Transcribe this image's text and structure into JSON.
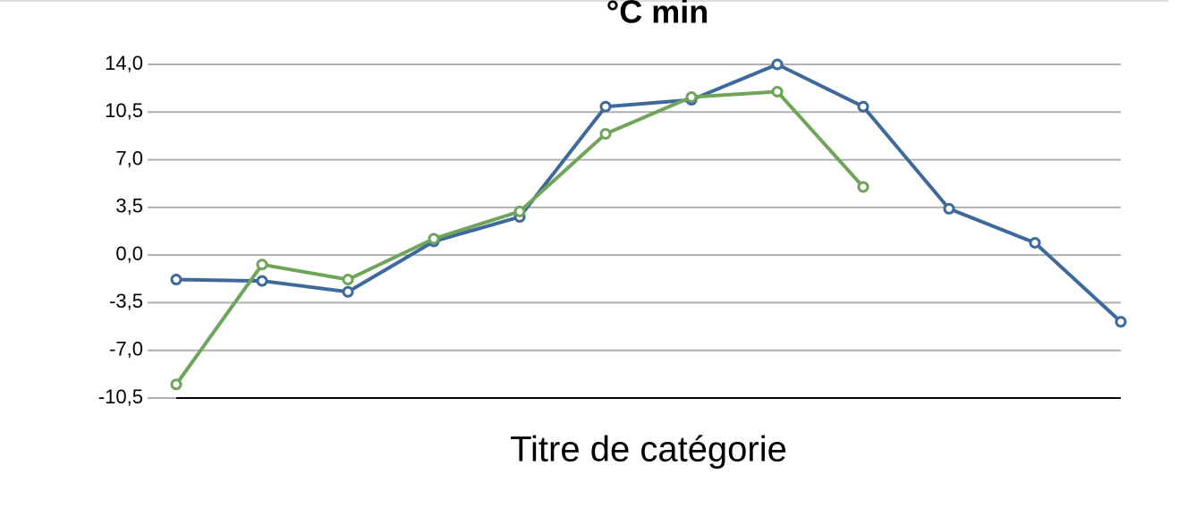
{
  "chart_data": {
    "type": "line",
    "title": "°C min",
    "x_label": "Titre de catégorie",
    "categories": [
      null,
      null,
      null,
      null,
      null,
      null,
      null,
      null,
      null,
      null,
      null,
      null
    ],
    "series": [
      {
        "color": "#3d6a9b",
        "values": [
          -1.8,
          -1.9,
          -2.7,
          1.0,
          2.8,
          10.9,
          11.4,
          14.0,
          10.9,
          3.4,
          0.9,
          -4.9
        ]
      },
      {
        "color": "#6fa55a",
        "values": [
          -9.5,
          -0.7,
          -1.8,
          1.2,
          3.2,
          8.9,
          11.6,
          12.0,
          5.0,
          null,
          null,
          null
        ]
      }
    ],
    "ylim": [
      -10.5,
      14
    ],
    "yticks": [
      {
        "value": -10.5,
        "label": "-10,5"
      },
      {
        "value": -7,
        "label": "-7,0"
      },
      {
        "value": -3.5,
        "label": "-3,5"
      },
      {
        "value": 0,
        "label": "0,0"
      },
      {
        "value": 3.5,
        "label": "3,5"
      },
      {
        "value": 7,
        "label": "7,0"
      },
      {
        "value": 10.5,
        "label": "10,5"
      },
      {
        "value": 14,
        "label": "14,0"
      }
    ],
    "grid": true
  }
}
